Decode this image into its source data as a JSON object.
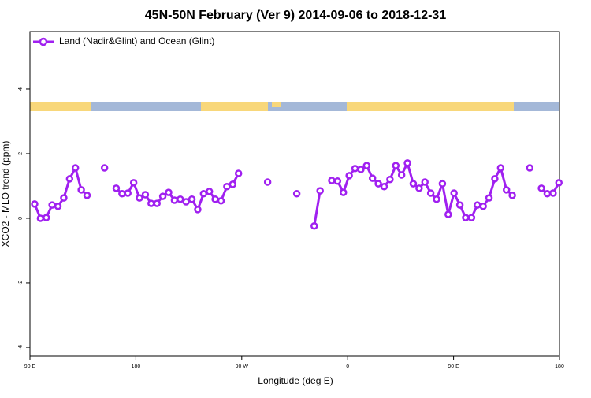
{
  "chart_data": {
    "type": "line",
    "title": "45N-50N February (Ver 9)   2014-09-06 to 2018-12-31",
    "xlabel": "Longitude (deg E)",
    "ylabel": "XCO2 - MLO trend (ppm)",
    "xlim": [
      -270,
      180
    ],
    "ylim": [
      -4.27,
      5.78
    ],
    "xticks": [
      {
        "value": -270,
        "label": "90 E"
      },
      {
        "value": -180,
        "label": "180"
      },
      {
        "value": -90,
        "label": "90 W"
      },
      0,
      {
        "value": 90,
        "label": "90 E"
      },
      180
    ],
    "yticks": [
      -4,
      -2,
      0,
      2,
      4
    ],
    "legend": "top-left",
    "x": [
      -266,
      -261.05,
      -256.1,
      -251.15,
      -246.2,
      -241.25,
      -236.3,
      -231.35,
      -226.4,
      -221.45,
      -216.5,
      -211.55,
      -206.6,
      -201.65,
      -196.7,
      -191.75,
      -186.8,
      -181.85,
      -176.9,
      -171.95,
      -167,
      -162.05,
      -157.1,
      -152.15,
      -147.2,
      -142.25,
      -137.3,
      -132.35,
      -127.4,
      -122.45,
      -117.5,
      -112.55,
      -107.6,
      -102.65,
      -97.7,
      -92.75,
      -87.8,
      -82.85,
      -77.9,
      -72.95,
      -68,
      -63.05,
      -58.1,
      -53.15,
      -48.2,
      -43.25,
      -38.3,
      -33.35,
      -28.4,
      -23.45,
      -18.5,
      -13.55,
      -8.6,
      -3.65,
      1.3,
      6.25,
      11.2,
      16.15,
      21.1,
      26.05,
      31,
      35.95,
      40.9,
      45.85,
      50.8,
      55.75,
      60.7,
      65.65,
      70.6,
      75.55,
      80.5,
      85.45,
      90.4,
      95.35,
      100.3,
      105.25,
      110.2,
      115.15,
      120.1,
      125.05,
      130,
      134.95,
      139.9,
      144.85,
      149.8,
      154.75,
      159.7,
      164.65,
      169.6,
      174.55,
      179.5
    ],
    "series": [
      {
        "name": "Land (Nadir&Glint) and Ocean (Glint)",
        "color": "#a020f0",
        "values": [
          0.44,
          0,
          0.02,
          0.41,
          0.37,
          0.63,
          1.22,
          1.56,
          0.88,
          0.71,
          null,
          null,
          1.56,
          null,
          0.93,
          0.76,
          0.78,
          1.1,
          0.63,
          0.73,
          0.46,
          0.46,
          0.68,
          0.8,
          0.56,
          0.59,
          0.51,
          0.59,
          0.27,
          0.76,
          0.83,
          0.59,
          0.54,
          0.98,
          1.05,
          1.39,
          null,
          null,
          null,
          null,
          1.12,
          null,
          null,
          null,
          null,
          0.76,
          null,
          null,
          -0.24,
          0.85,
          null,
          1.17,
          1.15,
          0.8,
          1.32,
          1.54,
          1.51,
          1.63,
          1.24,
          1.07,
          0.98,
          1.2,
          1.63,
          1.34,
          1.71,
          1.07,
          0.93,
          1.12,
          0.78,
          0.59,
          1.07,
          0.12,
          0.78,
          0.41,
          0.02,
          0.02,
          0.41,
          0.37,
          0.63,
          1.22,
          1.56,
          0.88,
          0.71,
          null,
          null,
          1.56,
          null,
          0.93,
          0.76,
          0.78,
          1.1
        ]
      }
    ]
  }
}
